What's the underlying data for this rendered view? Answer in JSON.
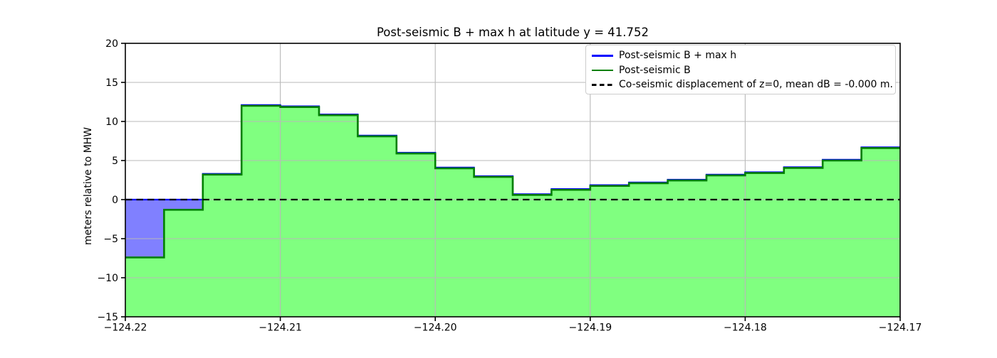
{
  "chart_data": {
    "type": "area",
    "title": "Post-seismic B + max h at latitude y = 41.752",
    "xlabel": "",
    "ylabel": "meters relative to MHW",
    "xlim": [
      -124.22,
      -124.17
    ],
    "ylim": [
      -15,
      20
    ],
    "grid": true,
    "legend_position": "upper right",
    "xticks": {
      "values": [
        -124.22,
        -124.21,
        -124.2,
        -124.19,
        -124.18,
        -124.17
      ],
      "labels": [
        "−124.22",
        "−124.21",
        "−124.20",
        "−124.19",
        "−124.18",
        "−124.17"
      ]
    },
    "yticks": {
      "values": [
        20,
        15,
        10,
        5,
        0,
        -5,
        -10,
        -15
      ],
      "labels": [
        "20",
        "15",
        "10",
        "5",
        "0",
        "−5",
        "−10",
        "−15"
      ]
    },
    "x_edges": [
      -124.22,
      -124.2175,
      -124.215,
      -124.2125,
      -124.21,
      -124.2075,
      -124.205,
      -124.2025,
      -124.2,
      -124.1975,
      -124.195,
      -124.1925,
      -124.19,
      -124.1875,
      -124.185,
      -124.1825,
      -124.18,
      -124.1775,
      -124.175,
      -124.1725,
      -124.17
    ],
    "series": [
      {
        "name": "Post-seismic B + max h",
        "line_color": "#0000ff",
        "fill_color": "#8080ff",
        "values": [
          0.0,
          0.0,
          3.3,
          12.1,
          11.95,
          10.9,
          8.2,
          6.0,
          4.1,
          3.0,
          0.7,
          1.35,
          1.85,
          2.2,
          2.55,
          3.2,
          3.5,
          4.15,
          5.1,
          6.7
        ]
      },
      {
        "name": "Post-seismic B",
        "line_color": "#008000",
        "fill_color": "#80ff80",
        "values": [
          -7.4,
          -1.3,
          3.2,
          12.0,
          11.85,
          10.8,
          8.1,
          5.9,
          4.0,
          2.9,
          0.6,
          1.25,
          1.75,
          2.1,
          2.45,
          3.1,
          3.4,
          4.05,
          5.0,
          6.6
        ]
      }
    ],
    "zero_line": {
      "label": "Co-seismic displacement of z=0, mean dB = -0.000 m.",
      "y": 0,
      "color": "#000000",
      "style": "dashed"
    },
    "legend_entries": [
      {
        "label": "Post-seismic B + max h",
        "color": "#0000ff",
        "style": "solid"
      },
      {
        "label": "Post-seismic B",
        "color": "#008000",
        "style": "solid"
      },
      {
        "label": "Co-seismic displacement of z=0, mean dB = -0.000 m.",
        "color": "#000000",
        "style": "dashed"
      }
    ],
    "style": {
      "grid_color": "#b9b9b9",
      "spine_color": "#000000",
      "text_color": "#000000",
      "background": "#ffffff"
    }
  }
}
